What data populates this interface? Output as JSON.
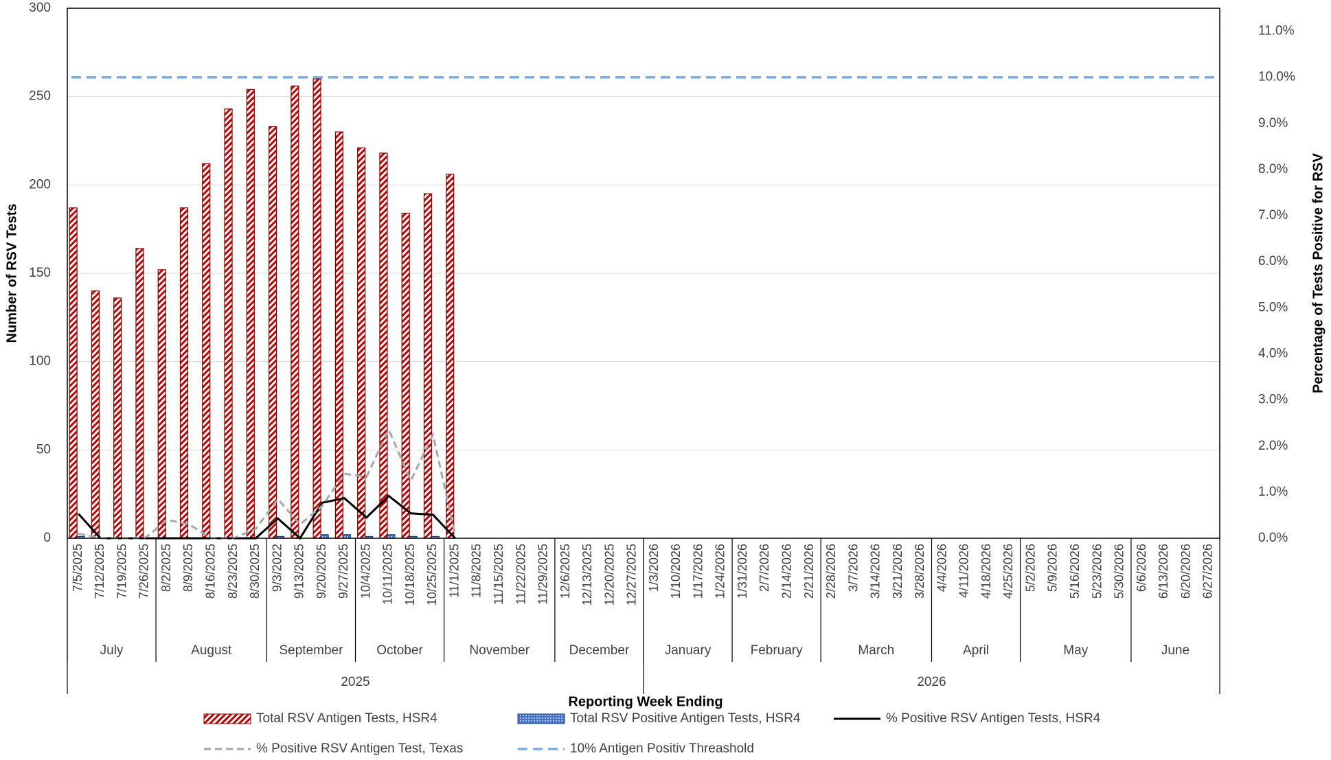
{
  "chart_data": {
    "type": "bar-line-combo",
    "y_axis_title": "Number of RSV Tests",
    "y2_axis_title": "Percentage of Tests Positive for RSV",
    "x_axis_title": "Reporting Week Ending",
    "ylim": [
      0,
      300
    ],
    "yticks": [
      0,
      50,
      100,
      150,
      200,
      250,
      300
    ],
    "y2lim": [
      0,
      11.5
    ],
    "y2ticks": [
      {
        "value": 0,
        "label": "0.0%"
      },
      {
        "value": 1,
        "label": "1.0%"
      },
      {
        "value": 2,
        "label": "2.0%"
      },
      {
        "value": 3,
        "label": "3.0%"
      },
      {
        "value": 4,
        "label": "4.0%"
      },
      {
        "value": 5,
        "label": "5.0%"
      },
      {
        "value": 6,
        "label": "6.0%"
      },
      {
        "value": 7,
        "label": "7.0%"
      },
      {
        "value": 8,
        "label": "8.0%"
      },
      {
        "value": 9,
        "label": "9.0%"
      },
      {
        "value": 10,
        "label": "10.0%"
      },
      {
        "value": 11,
        "label": "11.0%"
      }
    ],
    "grid": true,
    "years": [
      {
        "label": "2025",
        "months": [
          {
            "label": "July",
            "weeks": [
              "7/5/2025",
              "7/12/2025",
              "7/19/2025",
              "7/26/2025"
            ]
          },
          {
            "label": "August",
            "weeks": [
              "8/2/2025",
              "8/9/2025",
              "8/16/2025",
              "8/23/2025",
              "8/30/2025"
            ]
          },
          {
            "label": "September",
            "weeks": [
              "9/3/2022",
              "9/13/2025",
              "9/20/2025",
              "9/27/2025"
            ]
          },
          {
            "label": "October",
            "weeks": [
              "10/4/2025",
              "10/11/2025",
              "10/18/2025",
              "10/25/2025"
            ]
          },
          {
            "label": "November",
            "weeks": [
              "11/1/2025",
              "11/8/2025",
              "11/15/2025",
              "11/22/2025",
              "11/29/2025"
            ]
          },
          {
            "label": "December",
            "weeks": [
              "12/6/2025",
              "12/13/2025",
              "12/20/2025",
              "12/27/2025"
            ]
          }
        ]
      },
      {
        "label": "2026",
        "months": [
          {
            "label": "January",
            "weeks": [
              "1/3/2026",
              "1/10/2026",
              "1/17/2026",
              "1/24/2026"
            ]
          },
          {
            "label": "February",
            "weeks": [
              "1/31/2026",
              "2/7/2026",
              "2/14/2026",
              "2/21/2026"
            ]
          },
          {
            "label": "March",
            "weeks": [
              "2/28/2026",
              "3/7/2026",
              "3/14/2026",
              "3/21/2026",
              "3/28/2026"
            ]
          },
          {
            "label": "April",
            "weeks": [
              "4/4/2026",
              "4/11/2026",
              "4/18/2026",
              "4/25/2026"
            ]
          },
          {
            "label": "May",
            "weeks": [
              "5/2/2026",
              "5/9/2026",
              "5/16/2026",
              "5/23/2026",
              "5/30/2026"
            ]
          },
          {
            "label": "June",
            "weeks": [
              "6/6/2026",
              "6/13/2026",
              "6/20/2026",
              "6/27/2026"
            ]
          }
        ]
      }
    ],
    "series": [
      {
        "name": "Total RSV Antigen Tests, HSR4",
        "kind": "bar",
        "pattern": "stripes",
        "color": "#c00000",
        "axis": "y",
        "values": [
          187,
          140,
          136,
          164,
          152,
          187,
          212,
          243,
          254,
          233,
          256,
          260,
          230,
          221,
          218,
          184,
          195,
          206,
          null,
          null,
          null,
          null,
          null,
          null,
          null,
          null,
          null,
          null,
          null,
          null,
          null,
          null,
          null,
          null,
          null,
          null,
          null,
          null,
          null,
          null,
          null,
          null,
          null,
          null,
          null,
          null,
          null,
          null,
          null,
          null,
          null,
          null
        ]
      },
      {
        "name": "Total RSV Positive Antigen Tests, HSR4",
        "kind": "bar",
        "pattern": "dots",
        "color": "#4472c4",
        "axis": "y",
        "values": [
          1,
          0,
          0,
          0,
          0,
          0,
          0,
          0,
          0,
          1,
          0,
          2,
          2,
          1,
          2,
          1,
          1,
          0,
          null,
          null,
          null,
          null,
          null,
          null,
          null,
          null,
          null,
          null,
          null,
          null,
          null,
          null,
          null,
          null,
          null,
          null,
          null,
          null,
          null,
          null,
          null,
          null,
          null,
          null,
          null,
          null,
          null,
          null,
          null,
          null,
          null,
          null
        ]
      },
      {
        "name": "% Positive RSV Antigen Tests, HSR4",
        "kind": "line",
        "dashed": false,
        "color": "#000000",
        "axis": "y2",
        "values": [
          0.53,
          0,
          0,
          0,
          0,
          0,
          0,
          0,
          0,
          0.43,
          0,
          0.77,
          0.87,
          0.45,
          0.92,
          0.54,
          0.51,
          0,
          null,
          null,
          null,
          null,
          null,
          null,
          null,
          null,
          null,
          null,
          null,
          null,
          null,
          null,
          null,
          null,
          null,
          null,
          null,
          null,
          null,
          null,
          null,
          null,
          null,
          null,
          null,
          null,
          null,
          null,
          null,
          null,
          null,
          null
        ]
      },
      {
        "name": "% Positive RSV Antigen Test, Texas",
        "kind": "line",
        "dashed": true,
        "color": "#a6a6a6",
        "axis": "y2",
        "values": [
          0.1,
          0,
          0,
          0,
          0.4,
          0.3,
          0,
          0,
          0.2,
          0.85,
          0.3,
          0.7,
          1.4,
          1.33,
          2.36,
          1.25,
          2.25,
          0.07,
          null,
          null,
          null,
          null,
          null,
          null,
          null,
          null,
          null,
          null,
          null,
          null,
          null,
          null,
          null,
          null,
          null,
          null,
          null,
          null,
          null,
          null,
          null,
          null,
          null,
          null,
          null,
          null,
          null,
          null,
          null,
          null,
          null,
          null
        ]
      }
    ],
    "threshold": {
      "name": "10% Antigen Positiv Threashold",
      "value": 10,
      "color": "#7aaee0",
      "axis": "y2"
    }
  }
}
